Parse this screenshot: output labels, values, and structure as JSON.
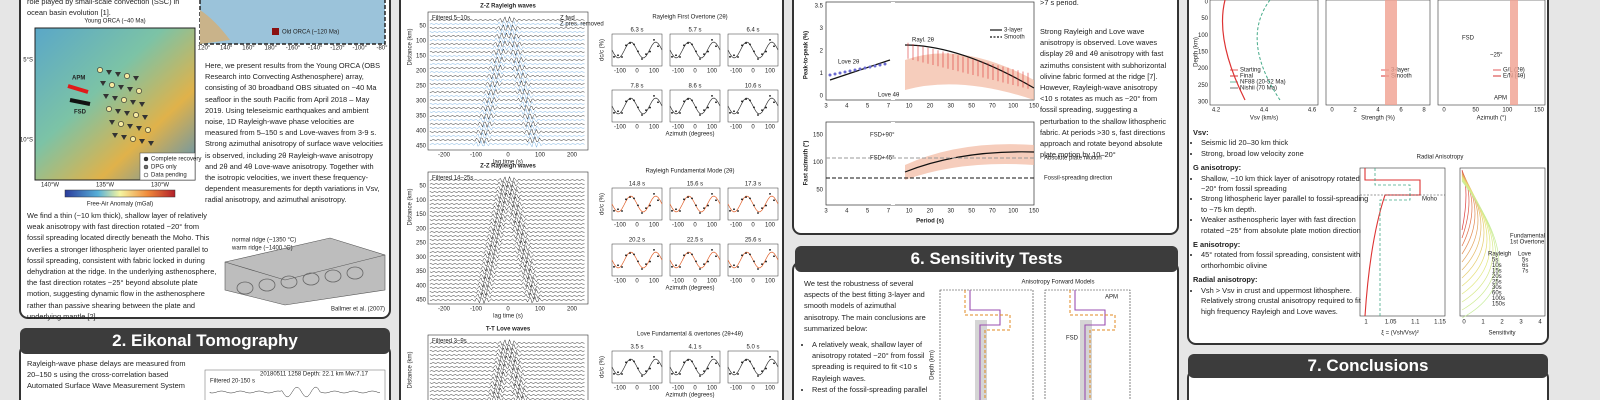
{
  "intro": {
    "lead": "role played by small-scale convection (SSC) in ocean basin evolution [1].",
    "map_title": "Young ORCA (~40 Ma)",
    "old_orca": "Old ORCA (~120 Ma)",
    "map_marks": [
      "APM",
      "FSD"
    ],
    "map_lat": [
      "5°S",
      "10°S"
    ],
    "map_lon": [
      "140°W",
      "135°W",
      "130°W"
    ],
    "inset_lon": [
      "120°",
      "140°",
      "160°",
      "180°",
      "-160°",
      "-140°",
      "-120°",
      "-100°",
      "-80°"
    ],
    "legend": [
      "Complete recovery",
      "DPG only",
      "Data pending"
    ],
    "colorbar_label": "Free-Air Anomaly (mGal)",
    "paragraph1": "Here, we present results from the Young ORCA (OBS Research into Convecting Asthenosphere) array, consisting of 30 broadband OBS situated on ~40 Ma seafloor in the south Pacific from April 2018 – May 2019. Using teleseismic earthquakes and ambient noise, 1D Rayleigh-wave phase velocities are measured from 5–150 s and Love-waves from 3-9 s. Strong azimuthal anisotropy of surface wave velocities is observed, including 2θ Rayleigh-wave anisotropy and 2θ and 4θ Love-wave anisotropy. Together with the isotropic velocities, we invert these frequency-dependent measurements for depth variations in Vsv, radial anisotropy, and azimuthal anisotropy.",
    "paragraph2": "We find a thin (~10 km thick), shallow layer of relatively weak anisotropy with fast direction rotated ~20° from fossil spreading located directly beneath the Moho. This overlies a stronger lithospheric layer oriented parallel to fossil spreading, consistent with fabric locked in during dehydration at the ridge. In the underlying asthenosphere, the fast direction rotates ~25° beyond absolute plate motion, suggesting dynamic flow in the asthenosphere rather than passive shearing between the plate and underlying mantle [2].",
    "figure_labels": [
      "normal ridge (~1350 °C)",
      "warm ridge (~1400 °C)"
    ],
    "credit": "Ballmer et al. (2007)"
  },
  "eikonal": {
    "header": "2. Eikonal Tomography",
    "text": "Rayleigh-wave phase delays are measured from 20–150 s using the cross-correlation based Automated Surface Wave Measurement System",
    "event": "20180511 1258  Depth: 22.1 km  Mw:7.17",
    "filter": "Filtered 20-150 s"
  },
  "waveforms": {
    "panels": [
      {
        "title": "Z-Z Rayleigh waves",
        "filter": "Filtered 5–10s"
      },
      {
        "title": "Z-Z Rayleigh waves",
        "filter": "Filtered 14–25s"
      },
      {
        "title": "T-T Love waves",
        "filter": "Filtered 3–9s"
      }
    ],
    "legend": [
      "Z fwd",
      "Z pres. removed"
    ],
    "lag_ticks": [
      "-200",
      "-100",
      "0",
      "100",
      "200"
    ],
    "distance_ticks": [
      "50",
      "100",
      "150",
      "200",
      "250",
      "300",
      "350",
      "400",
      "450"
    ],
    "lag_label": "lag time (s)",
    "distance_label": "Distance (km)",
    "fits": [
      {
        "title": "Rayleigh First Overtone (2θ)",
        "periods": [
          "6.3 s",
          "5.7 s",
          "6.4 s",
          "7.8 s",
          "8.6 s",
          "10.6 s"
        ]
      },
      {
        "title": "Rayleigh Fundamental Mode (2θ)",
        "periods": [
          "14.8 s",
          "15.6 s",
          "17.3 s",
          "20.2 s",
          "22.5 s",
          "25.6 s"
        ]
      },
      {
        "title": "Love Fundamental & overtones (2θ+4θ)",
        "periods": [
          "3.5 s",
          "4.1 s",
          "5.0 s"
        ]
      }
    ],
    "azimuth_ticks": [
      "-100",
      "0",
      "100"
    ],
    "azimuth_label": "Azimuth (degrees)",
    "dcc_label": "dc/c (%)"
  },
  "anisotropy": {
    "period_ticks": [
      "3",
      "4",
      "5",
      "7",
      "10",
      "20",
      "30",
      "50",
      "70",
      "100",
      "150"
    ],
    "period_label": "Period (s)",
    "peak_label": "Peak-to-peak (%)",
    "peak_ticks": [
      "0",
      "1",
      "2",
      "3",
      "3.5"
    ],
    "azimuth_label": "Fast azimuth (°)",
    "azimuth_ticks": [
      "50",
      "100",
      "150"
    ],
    "curve_labels": [
      "Rayl. 2θ",
      "Love 2θ",
      "Love 4θ",
      "FSD+90°",
      "FSD+45°"
    ],
    "legend": [
      "3-layer",
      "Smooth"
    ],
    "directions": [
      "Absolute plate motion",
      "Fossil-spreading direction"
    ],
    "text_top": ">7 s period.",
    "text": "Strong Rayleigh and Love wave anisotropy is observed. Love waves display 2θ and 4θ anisotropy with fast azimuths consistent with subhorizontal olivine fabric formed at the ridge [7]. However, Rayleigh-wave anisotropy <10 s rotates as much as ~20° from fossil spreading, suggesting a perturbation to the shallow lithospheric fabric. At periods >30 s, fast directions approach and rotate beyond absolute plate motion by 10–20°"
  },
  "sensitivity": {
    "header": "6. Sensitivity Tests",
    "intro": "We test the robustness of several aspects of the best fitting 3-layer and smooth models of azimuthal anisotropy. The main conclusions are summarized below:",
    "bullets": [
      "A relatively weak, shallow layer of anisotropy rotated ~20° from fossil spreading is required to fit <10 s Rayleigh waves.",
      "Rest of the fossil-spreading parallel"
    ],
    "figure_title": "Anisotropy Forward Models",
    "depth_label": "Depth (km)",
    "marks": [
      "APM",
      "FSD"
    ]
  },
  "models": {
    "depth_label": "Depth (km)",
    "depth_ticks": [
      "0",
      "50",
      "100",
      "150",
      "200",
      "250",
      "300"
    ],
    "axes": [
      {
        "label": "Vsv (km/s)",
        "ticks": [
          "4.2",
          "4.4",
          "4.6"
        ],
        "legend": [
          "Starting",
          "Final",
          "NF88 (20-52 Ma)",
          "Nishii (70 Ma)"
        ]
      },
      {
        "label": "Strength (%)",
        "ticks": [
          "0",
          "2",
          "4",
          "6",
          "8"
        ],
        "legend": [
          "3-layer",
          "Smooth"
        ]
      },
      {
        "label": "Azimuth (°)",
        "ticks": [
          "0",
          "50",
          "100",
          "150"
        ],
        "legend": [
          "G/L (2θ)",
          "E/N (4θ)"
        ]
      }
    ],
    "marks": [
      "FSD",
      "~25°",
      "APM"
    ]
  },
  "summary": {
    "sections": [
      {
        "title": "Vsv:",
        "bullets": [
          "Seismic lid 20–30 km thick",
          "Strong, broad low velocity zone"
        ]
      },
      {
        "title": "G anisotropy:",
        "bullets": [
          "Shallow, ~10 km thick layer of anisotropy rotated ~20° from fossil spreading",
          "Strong lithospheric layer parallel to fossil-spreading to ~75 km depth.",
          "Weaker asthenospheric layer with fast direction rotated ~25° from absolute plate motion direction"
        ]
      },
      {
        "title": "E anisotropy:",
        "bullets": [
          "45° rotated from fossil spreading, consistent with orthorhombic olivine"
        ]
      },
      {
        "title": "Radial anisotropy:",
        "bullets": [
          "Vsh > Vsv in crust and uppermost lithosphere. Relatively strong crustal anisotropy required to fit high frequency Rayleigh and Love waves."
        ]
      }
    ],
    "radial_title": "Radial Anisotropy",
    "radial_ticks": [
      "1",
      "1.05",
      "1.1",
      "1.15"
    ],
    "radial_label": "ξ = (Vsh/Vsv)²",
    "moho": "Moho",
    "sens_ticks": [
      "0",
      "1",
      "2",
      "3",
      "4"
    ],
    "sens_label": "Sensitivity",
    "sens_legend": [
      "Fundamental",
      "1st Overtone"
    ],
    "periods_rayleigh": [
      "5s",
      "10s",
      "15s",
      "20s",
      "25s",
      "30s",
      "60s",
      "100s",
      "150s"
    ],
    "periods_love": [
      "5s",
      "6s",
      "7s"
    ],
    "mode_titles": [
      "Rayleigh",
      "Love"
    ]
  },
  "conclusions": {
    "header": "7. Conclusions"
  }
}
